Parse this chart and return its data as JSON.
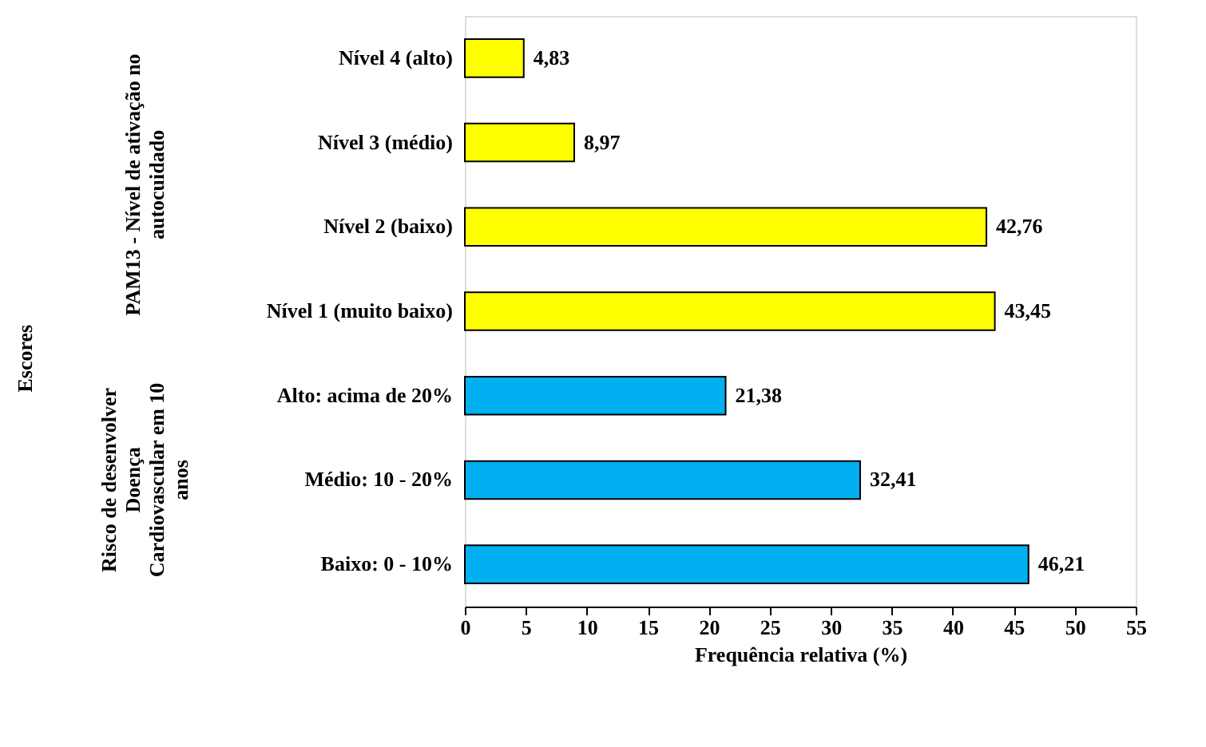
{
  "chart_data": {
    "type": "bar",
    "orientation": "horizontal",
    "categories": [
      "Nível 4 (alto)",
      "Nível 3 (médio)",
      "Nível 2 (baixo)",
      "Nível 1 (muito baixo)",
      "Alto:  acima de 20%",
      "Médio: 10 - 20%",
      "Baixo: 0 - 10%"
    ],
    "values": [
      4.83,
      8.97,
      42.76,
      43.45,
      21.38,
      32.41,
      46.21
    ],
    "value_labels": [
      "4,83",
      "8,97",
      "42,76",
      "43,45",
      "21,38",
      "32,41",
      "46,21"
    ],
    "colors": [
      "#ffff00",
      "#ffff00",
      "#ffff00",
      "#ffff00",
      "#00b0f0",
      "#00b0f0",
      "#00b0f0"
    ],
    "xlabel": "Frequência relativa (%)",
    "annotations": [
      "Escores",
      "PAM13 - Nível de ativação no autocuidado",
      "Risco de desenvolver Doença Cardiovascular em 10 anos"
    ],
    "xlim": [
      0,
      55
    ],
    "xticks": [
      0,
      5,
      10,
      15,
      20,
      25,
      30,
      35,
      40,
      45,
      50,
      55
    ]
  }
}
